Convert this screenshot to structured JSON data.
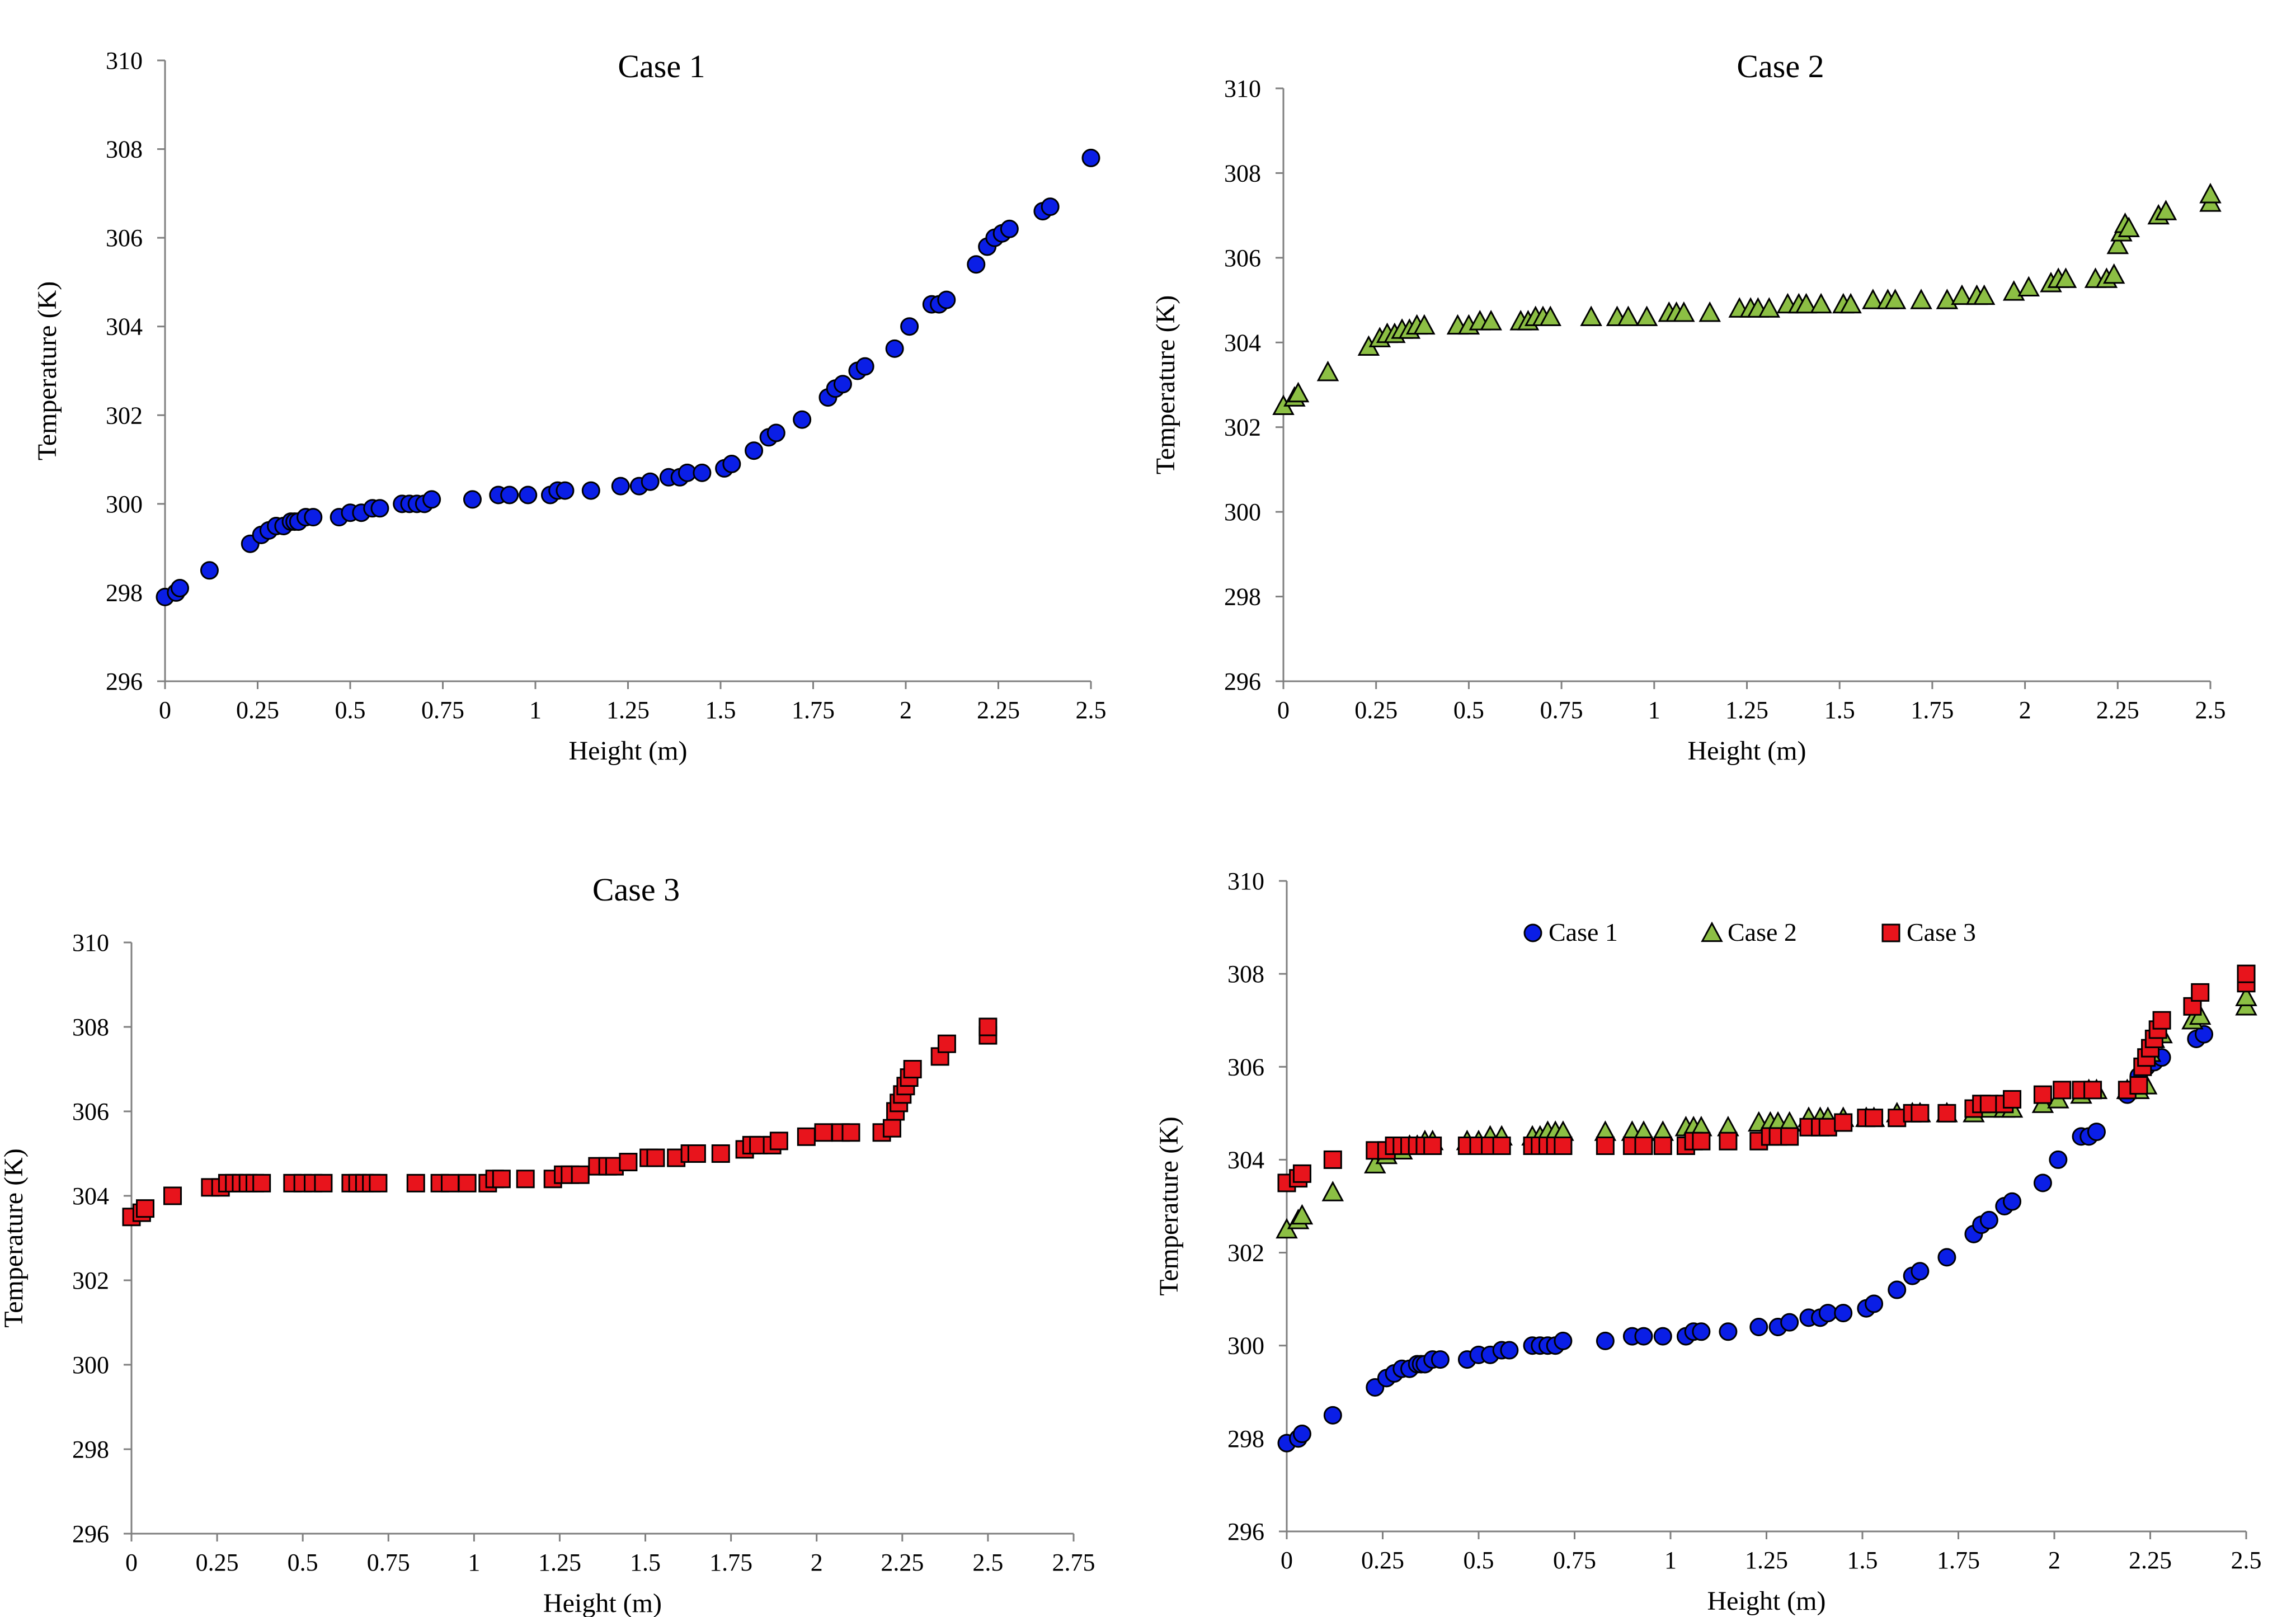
{
  "colors": {
    "case1": "#0a1ee6",
    "case2": "#8cbf44",
    "case3": "#e8141c",
    "axis": "#7f7f7f"
  },
  "series_data": {
    "case1": {
      "x": [
        0,
        0.03,
        0.04,
        0.12,
        0.23,
        0.26,
        0.28,
        0.3,
        0.32,
        0.34,
        0.35,
        0.36,
        0.38,
        0.4,
        0.47,
        0.5,
        0.53,
        0.56,
        0.58,
        0.64,
        0.66,
        0.68,
        0.7,
        0.72,
        0.83,
        0.9,
        0.93,
        0.98,
        1.04,
        1.06,
        1.08,
        1.15,
        1.23,
        1.28,
        1.31,
        1.36,
        1.39,
        1.41,
        1.45,
        1.51,
        1.53,
        1.59,
        1.63,
        1.65,
        1.72,
        1.79,
        1.81,
        1.83,
        1.87,
        1.89,
        1.97,
        2.01,
        2.07,
        2.09,
        2.11,
        2.19,
        2.22,
        2.24,
        2.26,
        2.28,
        2.37,
        2.39,
        2.5
      ],
      "y": [
        297.9,
        298.0,
        298.1,
        298.5,
        299.1,
        299.3,
        299.4,
        299.5,
        299.5,
        299.6,
        299.6,
        299.6,
        299.7,
        299.7,
        299.7,
        299.8,
        299.8,
        299.9,
        299.9,
        300.0,
        300.0,
        300.0,
        300.0,
        300.1,
        300.1,
        300.2,
        300.2,
        300.2,
        300.2,
        300.3,
        300.3,
        300.3,
        300.4,
        300.4,
        300.5,
        300.6,
        300.6,
        300.7,
        300.7,
        300.8,
        300.9,
        301.2,
        301.5,
        301.6,
        301.9,
        302.4,
        302.6,
        302.7,
        303.0,
        303.1,
        303.5,
        304.0,
        304.5,
        304.5,
        304.6,
        305.4,
        305.8,
        306.0,
        306.1,
        306.2,
        306.6,
        306.7,
        307.8
      ]
    },
    "case2": {
      "x": [
        0,
        0.03,
        0.04,
        0.12,
        0.23,
        0.26,
        0.28,
        0.3,
        0.32,
        0.34,
        0.36,
        0.38,
        0.47,
        0.5,
        0.53,
        0.56,
        0.64,
        0.66,
        0.68,
        0.7,
        0.72,
        0.83,
        0.9,
        0.93,
        0.98,
        1.04,
        1.06,
        1.08,
        1.15,
        1.23,
        1.26,
        1.28,
        1.31,
        1.36,
        1.39,
        1.41,
        1.45,
        1.51,
        1.53,
        1.59,
        1.63,
        1.65,
        1.72,
        1.79,
        1.83,
        1.87,
        1.89,
        1.97,
        2.01,
        2.07,
        2.09,
        2.11,
        2.19,
        2.22,
        2.24,
        2.25,
        2.26,
        2.27,
        2.28,
        2.36,
        2.38,
        2.5,
        2.5
      ],
      "y": [
        302.5,
        302.7,
        302.8,
        303.3,
        303.9,
        304.1,
        304.2,
        304.2,
        304.3,
        304.3,
        304.4,
        304.4,
        304.4,
        304.4,
        304.5,
        304.5,
        304.5,
        304.5,
        304.6,
        304.6,
        304.6,
        304.6,
        304.6,
        304.6,
        304.6,
        304.7,
        304.7,
        304.7,
        304.7,
        304.8,
        304.8,
        304.8,
        304.8,
        304.9,
        304.9,
        304.9,
        304.9,
        304.9,
        304.9,
        305.0,
        305.0,
        305.0,
        305.0,
        305.0,
        305.1,
        305.1,
        305.1,
        305.2,
        305.3,
        305.4,
        305.5,
        305.5,
        305.5,
        305.5,
        305.6,
        306.3,
        306.6,
        306.8,
        306.7,
        307.0,
        307.1,
        307.3,
        307.5
      ]
    },
    "case3": {
      "x": [
        0,
        0.03,
        0.04,
        0.12,
        0.23,
        0.26,
        0.28,
        0.3,
        0.32,
        0.34,
        0.36,
        0.38,
        0.47,
        0.5,
        0.53,
        0.56,
        0.64,
        0.66,
        0.68,
        0.7,
        0.72,
        0.83,
        0.9,
        0.93,
        0.98,
        1.04,
        1.06,
        1.08,
        1.15,
        1.23,
        1.26,
        1.28,
        1.31,
        1.36,
        1.39,
        1.41,
        1.45,
        1.51,
        1.53,
        1.59,
        1.63,
        1.65,
        1.72,
        1.79,
        1.81,
        1.83,
        1.87,
        1.89,
        1.97,
        2.02,
        2.07,
        2.1,
        2.19,
        2.22,
        2.23,
        2.24,
        2.25,
        2.26,
        2.27,
        2.28,
        2.36,
        2.38,
        2.5,
        2.5
      ],
      "y": [
        303.5,
        303.6,
        303.7,
        304.0,
        304.2,
        304.2,
        304.3,
        304.3,
        304.3,
        304.3,
        304.3,
        304.3,
        304.3,
        304.3,
        304.3,
        304.3,
        304.3,
        304.3,
        304.3,
        304.3,
        304.3,
        304.3,
        304.3,
        304.3,
        304.3,
        304.3,
        304.4,
        304.4,
        304.4,
        304.4,
        304.5,
        304.5,
        304.5,
        304.7,
        304.7,
        304.7,
        304.8,
        304.9,
        304.9,
        304.9,
        305.0,
        305.0,
        305.0,
        305.1,
        305.2,
        305.2,
        305.2,
        305.3,
        305.4,
        305.5,
        305.5,
        305.5,
        305.5,
        305.6,
        306.0,
        306.2,
        306.4,
        306.6,
        306.8,
        307.0,
        307.3,
        307.6,
        307.8,
        308.0
      ]
    }
  },
  "chart_data": [
    {
      "id": "case1",
      "type": "scatter",
      "title": "Case 1",
      "xlabel": "Height (m)",
      "ylabel": "Temperature (K)",
      "xlim": [
        0,
        2.5
      ],
      "ylim": [
        296,
        310
      ],
      "xticks": [
        "0",
        "0.25",
        "0.5",
        "0.75",
        "1",
        "1.25",
        "1.5",
        "1.75",
        "2",
        "2.25",
        "2.5"
      ],
      "yticks": [
        "296",
        "298",
        "300",
        "302",
        "304",
        "306",
        "308",
        "310"
      ],
      "grid": false,
      "series": [
        {
          "name": "Case 1",
          "key": "case1",
          "marker": "circle"
        }
      ]
    },
    {
      "id": "case2",
      "type": "scatter",
      "title": "Case 2",
      "xlabel": "Height (m)",
      "ylabel": "Temperature (K)",
      "xlim": [
        0,
        2.5
      ],
      "ylim": [
        296,
        310
      ],
      "xticks": [
        "0",
        "0.25",
        "0.5",
        "0.75",
        "1",
        "1.25",
        "1.5",
        "1.75",
        "2",
        "2.25",
        "2.5"
      ],
      "yticks": [
        "296",
        "298",
        "300",
        "302",
        "304",
        "306",
        "308",
        "310"
      ],
      "grid": false,
      "series": [
        {
          "name": "Case 2",
          "key": "case2",
          "marker": "triangle"
        }
      ]
    },
    {
      "id": "case3",
      "type": "scatter",
      "title": "Case 3",
      "xlabel": "Height (m)",
      "ylabel": "Temperature (K)",
      "xlim": [
        0,
        2.75
      ],
      "ylim": [
        296,
        310
      ],
      "xticks": [
        "0",
        "0.25",
        "0.5",
        "0.75",
        "1",
        "1.25",
        "1.5",
        "1.75",
        "2",
        "2.25",
        "2.5",
        "2.75"
      ],
      "yticks": [
        "296",
        "298",
        "300",
        "302",
        "304",
        "306",
        "308",
        "310"
      ],
      "grid": false,
      "series": [
        {
          "name": "Case 3",
          "key": "case3",
          "marker": "square"
        }
      ]
    },
    {
      "id": "combined",
      "type": "scatter",
      "title": "",
      "xlabel": "Height (m)",
      "ylabel": "Temperature (K)",
      "xlim": [
        0,
        2.5
      ],
      "ylim": [
        296,
        310
      ],
      "xticks": [
        "0",
        "0.25",
        "0.5",
        "0.75",
        "1",
        "1.25",
        "1.5",
        "1.75",
        "2",
        "2.25",
        "2.5"
      ],
      "yticks": [
        "296",
        "298",
        "300",
        "302",
        "304",
        "306",
        "308",
        "310"
      ],
      "grid": false,
      "legend": {
        "placement": "top",
        "entries": [
          "Case 1",
          "Case 2",
          "Case 3"
        ]
      },
      "series": [
        {
          "name": "Case 1",
          "key": "case1",
          "marker": "circle"
        },
        {
          "name": "Case 2",
          "key": "case2",
          "marker": "triangle"
        },
        {
          "name": "Case 3",
          "key": "case3",
          "marker": "square"
        }
      ]
    }
  ]
}
